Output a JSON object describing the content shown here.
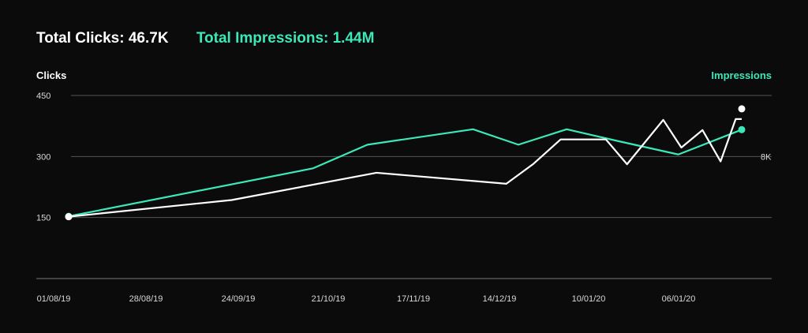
{
  "summary": {
    "clicks": "Total Clicks: 46.7K",
    "impressions": "Total Impressions: 1.44M"
  },
  "colors": {
    "clicks": "#ffffff",
    "impressions": "#3de8b8",
    "grid": "#555555",
    "background": "#0b0b0b"
  },
  "chart_data": {
    "type": "line",
    "ylabel": "Clicks",
    "y2label": "Impressions",
    "ylim": [
      0,
      450
    ],
    "yticks": [
      "450",
      "300",
      "150"
    ],
    "y2ticks": [
      "8K"
    ],
    "xticks": [
      "01/08/19",
      "28/08/19",
      "24/09/19",
      "21/10/19",
      "17/11/19",
      "14/12/19",
      "10/01/20",
      "06/01/20"
    ],
    "grid": "horizontal",
    "series": [
      {
        "name": "Clicks",
        "x": [
          "01/08/19",
          "24/09/19",
          "11/11/19",
          "24/12/19",
          "02/01/20",
          "11/01/20",
          "26/01/20",
          "02/02/20",
          "14/02/20",
          "20/02/20",
          "27/02/20",
          "04/03/20",
          "09/03/20",
          "11/03/20"
        ],
        "values": [
          152,
          193,
          260,
          233,
          282,
          342,
          342,
          281,
          390,
          322,
          365,
          288,
          392,
          392
        ]
      },
      {
        "name": "Impressions",
        "x": [
          "01/08/19",
          "21/10/19",
          "08/11/19",
          "13/12/19",
          "28/12/19",
          "13/01/20",
          "30/01/20",
          "19/02/20",
          "11/03/20"
        ],
        "values": [
          153,
          271,
          329,
          367,
          329,
          367,
          338,
          305,
          366
        ]
      }
    ]
  }
}
